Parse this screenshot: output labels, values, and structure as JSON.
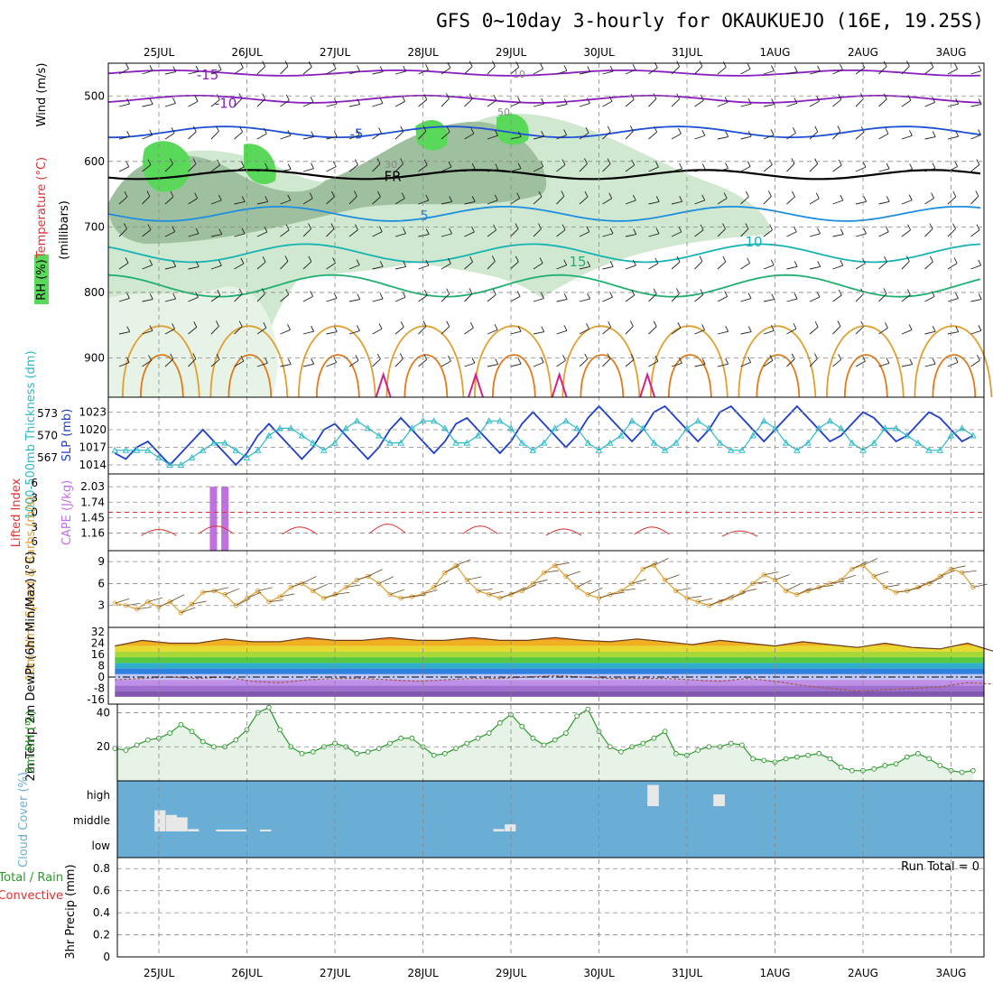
{
  "title": "GFS 0~10day 3-hourly for OKAUKUEJO (16E, 19.25S)",
  "dates": [
    "25JUL",
    "26JUL",
    "27JUL",
    "28JUL",
    "29JUL",
    "30JUL",
    "31JUL",
    "1AUG",
    "2AUG",
    "3AUG"
  ],
  "colors": {
    "purple": "#8a1fc0",
    "blue": "#1e4fd8",
    "lightblue": "#1e8ee0",
    "teal": "#17b3b3",
    "green": "#1fb070",
    "orange": "#e0a030",
    "darkorange": "#e07a1a",
    "magenta": "#d0208a",
    "rh_fill": "#cfe8cf",
    "rh_dark": "#9fc09f",
    "rh_green": "#5ad85a",
    "cloud_bg": "#6aaed6",
    "cloud_bar": "#e8e8e8",
    "cape": "#c070e0",
    "li": "#e03030",
    "slp": "#1e3fc8",
    "thick": "#2abaca",
    "wind10": "#e0a030",
    "rh2m": "#2a9a2a"
  },
  "chart_data": [
    {
      "type": "heatmap",
      "name": "cross-section",
      "ylabel_parts": [
        "Wind (m/s)",
        "Temperature (°C)",
        "(millibars)",
        "RH (%)"
      ],
      "ylim": [
        960,
        450
      ],
      "yticks": [
        500,
        600,
        700,
        800,
        900
      ],
      "temperature_contours": [
        {
          "label": "-15",
          "color": "#8a1fc0"
        },
        {
          "label": "-10",
          "color": "#8a1fc0"
        },
        {
          "label": "-5",
          "color": "#1e4fd8"
        },
        {
          "label": "FR",
          "color": "#000000"
        },
        {
          "label": "5",
          "color": "#1e8ee0"
        },
        {
          "label": "10",
          "color": "#17b3b3"
        },
        {
          "label": "15",
          "color": "#1fb070"
        }
      ],
      "rh_labels": [
        "10",
        "30",
        "50"
      ]
    },
    {
      "type": "line",
      "name": "slp-thickness",
      "ylabel_left": "1000-500mb Thickness (dm)",
      "ylabel_right": "SLP (mb)",
      "thickness_ticks": [
        567,
        570,
        573
      ],
      "slp_ticks": [
        1014,
        1017,
        1020,
        1023
      ],
      "slp": [
        1016,
        1015,
        1017,
        1018,
        1016,
        1014,
        1016,
        1018,
        1020,
        1018,
        1016,
        1014,
        1016,
        1019,
        1021,
        1019,
        1017,
        1015,
        1017,
        1020,
        1021,
        1019,
        1017,
        1015,
        1017,
        1020,
        1022,
        1020,
        1018,
        1016,
        1018,
        1021,
        1022,
        1020,
        1018,
        1016,
        1018,
        1021,
        1023,
        1021,
        1019,
        1017,
        1019,
        1022,
        1024,
        1022,
        1020,
        1018,
        1020,
        1023,
        1024,
        1022,
        1020,
        1018,
        1020,
        1023,
        1024,
        1022,
        1020,
        1018,
        1020,
        1022,
        1024,
        1022,
        1020,
        1018,
        1019,
        1021,
        1023,
        1022,
        1020,
        1018,
        1019,
        1021,
        1023,
        1022,
        1020,
        1018,
        1019,
        1022,
        1023
      ],
      "thickness": [
        568,
        568,
        568,
        568,
        567,
        566,
        566,
        567,
        568,
        569,
        569,
        568,
        567,
        568,
        570,
        571,
        571,
        570,
        569,
        568,
        569,
        571,
        572,
        571,
        570,
        569,
        569,
        571,
        572,
        572,
        571,
        569,
        569,
        570,
        572,
        572,
        571,
        569,
        568,
        569,
        571,
        572,
        571,
        569,
        568,
        569,
        570,
        572,
        571,
        569,
        568,
        569,
        571,
        572,
        571,
        569,
        568,
        568,
        570,
        572,
        571,
        569,
        568,
        569,
        571,
        572,
        571,
        569,
        568,
        569,
        571,
        571,
        570,
        569,
        568,
        568,
        570,
        571,
        570,
        569,
        568
      ]
    },
    {
      "type": "bar",
      "name": "cape-lifted-index",
      "ylabel_left": "Lifted Index",
      "ylabel_right": "CAPE (J/kg)",
      "li_ticks": [
        -6,
        -3,
        0,
        3,
        6
      ],
      "cape_ticks": [
        1.16,
        1.45,
        1.74,
        2.03
      ],
      "cape_bars": [
        {
          "day": 0.62,
          "value": 2.03
        },
        {
          "day": 0.75,
          "value": 2.03
        }
      ],
      "li_bumps": [
        {
          "center": 0.0,
          "peak": 3.5
        },
        {
          "center": 0.65,
          "peak": 2.8
        },
        {
          "center": 1.6,
          "peak": 3.0
        },
        {
          "center": 2.6,
          "peak": 2.4
        },
        {
          "center": 3.65,
          "peak": 2.8
        },
        {
          "center": 4.6,
          "peak": 3.4
        },
        {
          "center": 5.6,
          "peak": 3.0
        },
        {
          "center": 6.6,
          "peak": 3.8
        }
      ]
    },
    {
      "type": "line",
      "name": "wind10m",
      "ylabel": "10m Wind Speed & Barbs (m/s)",
      "yticks": [
        3,
        6,
        9
      ],
      "ylim": [
        0,
        10.5
      ],
      "values": [
        3.3,
        3.0,
        2.5,
        3.5,
        2.8,
        3.5,
        2.0,
        3.2,
        4.8,
        5.0,
        4.5,
        3.0,
        4.0,
        5.0,
        3.5,
        4.2,
        5.5,
        6.0,
        5.0,
        4.0,
        4.5,
        5.5,
        6.5,
        7.0,
        6.0,
        4.5,
        4.0,
        4.2,
        4.6,
        5.5,
        7.5,
        8.5,
        6.5,
        5.0,
        4.5,
        4.0,
        4.5,
        5.0,
        6.0,
        7.5,
        8.5,
        7.0,
        5.5,
        4.5,
        4.0,
        4.5,
        5.0,
        6.0,
        8.0,
        8.5,
        6.5,
        5.0,
        4.0,
        3.5,
        3.0,
        3.5,
        4.0,
        4.8,
        6.0,
        7.2,
        6.5,
        5.0,
        4.5,
        5.0,
        5.5,
        6.0,
        6.5,
        8.0,
        8.5,
        7.0,
        5.5,
        4.8,
        5.0,
        5.5,
        6.0,
        7.0,
        8.0,
        7.5,
        5.5,
        5.5,
        6.5
      ]
    },
    {
      "type": "area",
      "name": "temp-dewpt",
      "ylabel": "2m Temp 2m DewPt (6hr Min/Max) (°C)",
      "yticks": [
        32,
        24,
        16,
        8,
        0,
        -8,
        -16
      ],
      "temp_max": [
        22,
        26,
        24,
        24,
        27,
        25,
        25,
        28,
        26,
        26,
        28,
        26,
        26,
        28,
        26,
        26,
        28,
        26,
        25,
        27,
        25,
        23,
        26,
        24,
        22,
        25,
        23,
        21,
        24,
        21,
        20,
        24,
        18
      ],
      "dewpt": [
        -2,
        -1,
        0,
        -1,
        0,
        -3,
        -4,
        -2,
        -1,
        -1,
        -2,
        -3,
        -2,
        -1,
        -1,
        0,
        1,
        0,
        -1,
        -1,
        -1,
        -2,
        -3,
        -1,
        -3,
        -6,
        -8,
        -10,
        -9,
        -8,
        -7,
        -4,
        -5
      ]
    },
    {
      "type": "area",
      "name": "rh2m",
      "ylabel": "2m RH (%)",
      "yticks": [
        20,
        40
      ],
      "ylim": [
        0,
        45
      ],
      "values": [
        19,
        18,
        21,
        24,
        25,
        28,
        33,
        29,
        23,
        20,
        20,
        24,
        30,
        40,
        43,
        30,
        20,
        16,
        17,
        20,
        22,
        20,
        16,
        17,
        19,
        22,
        25,
        25,
        20,
        15,
        16,
        19,
        22,
        25,
        28,
        34,
        39,
        32,
        25,
        21,
        24,
        28,
        38,
        42,
        29,
        20,
        17,
        20,
        22,
        25,
        29,
        16,
        15,
        18,
        20,
        20,
        22,
        21,
        13,
        12,
        11,
        13,
        14,
        15,
        16,
        13,
        8,
        6,
        6,
        7,
        9,
        10,
        14,
        16,
        13,
        9,
        6,
        5,
        6,
        8,
        10,
        12,
        14,
        17,
        21,
        24
      ]
    },
    {
      "type": "bar",
      "name": "cloud-cover",
      "ylabel": "Cloud Cover (%)",
      "levels": [
        "high",
        "middle",
        "low"
      ],
      "bars": [
        {
          "day": -0.05,
          "span": 0.125,
          "level": "middle",
          "frac": 0.9
        },
        {
          "day": 0.08,
          "span": 0.125,
          "level": "middle",
          "frac": 0.7
        },
        {
          "day": 0.2,
          "span": 0.125,
          "level": "middle",
          "frac": 0.6
        },
        {
          "day": 0.33,
          "span": 0.125,
          "level": "middle",
          "frac": 0.1
        },
        {
          "day": 0.65,
          "span": 0.35,
          "level": "middle",
          "frac": 0.08
        },
        {
          "day": 1.15,
          "span": 0.125,
          "level": "middle",
          "frac": 0.08
        },
        {
          "day": 3.8,
          "span": 0.125,
          "level": "middle",
          "frac": 0.1
        },
        {
          "day": 3.93,
          "span": 0.125,
          "level": "middle",
          "frac": 0.3
        },
        {
          "day": 5.55,
          "span": 0.13,
          "level": "high",
          "frac": 0.9
        },
        {
          "day": 6.3,
          "span": 0.13,
          "level": "high",
          "frac": 0.5
        }
      ]
    },
    {
      "type": "bar",
      "name": "precip",
      "ylabel": "3hr Precip (mm)",
      "ylabel_left_lines": [
        "Total / Rain",
        "Convective"
      ],
      "yticks": [
        0,
        0.2,
        0.4,
        0.6,
        0.8
      ],
      "ylim": [
        0,
        0.9
      ],
      "values": [],
      "run_total": "Run Total = 0"
    }
  ]
}
